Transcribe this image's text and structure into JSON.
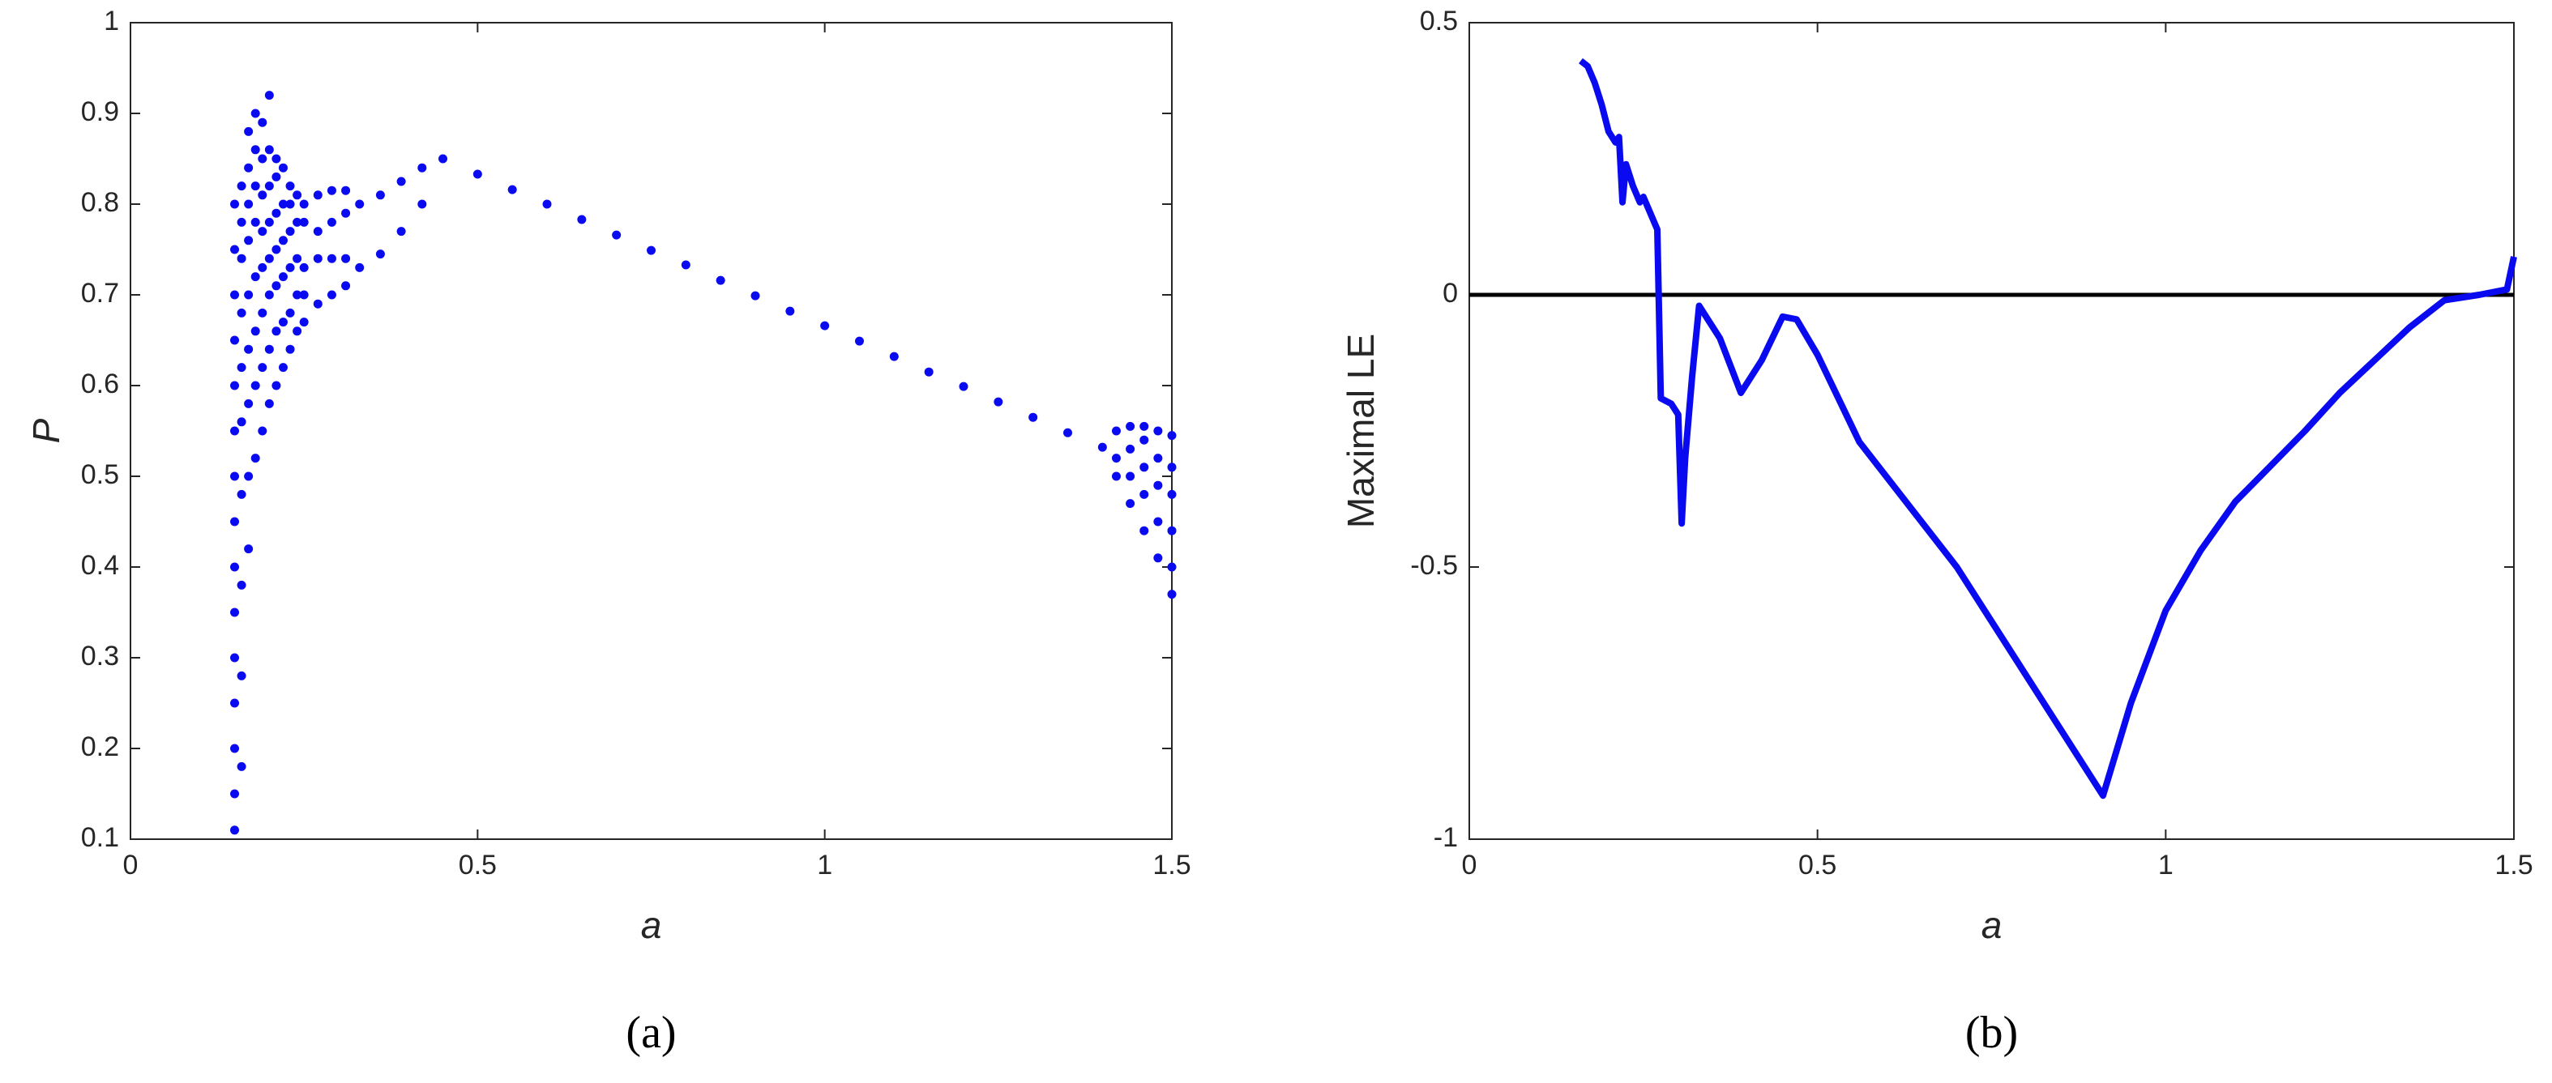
{
  "chart_data": [
    {
      "type": "scatter",
      "caption": "(a)",
      "xlabel": "a",
      "ylabel": "P",
      "xlim": [
        0,
        1.5
      ],
      "xticks": [
        0,
        0.5,
        1,
        1.5
      ],
      "ylim": [
        0.1,
        1
      ],
      "yticks": [
        0.1,
        0.2,
        0.3,
        0.4,
        0.5,
        0.6,
        0.7,
        0.8,
        0.9,
        1
      ],
      "series": [
        {
          "color": "#0a0af0",
          "x": [
            0.15,
            0.15,
            0.15,
            0.15,
            0.15,
            0.15,
            0.15,
            0.15,
            0.15,
            0.15,
            0.15,
            0.15,
            0.15,
            0.15,
            0.15,
            0.16,
            0.16,
            0.16,
            0.16,
            0.16,
            0.16,
            0.16,
            0.16,
            0.16,
            0.16,
            0.17,
            0.17,
            0.17,
            0.17,
            0.17,
            0.17,
            0.17,
            0.17,
            0.17,
            0.18,
            0.18,
            0.18,
            0.18,
            0.18,
            0.18,
            0.18,
            0.18,
            0.19,
            0.19,
            0.19,
            0.19,
            0.19,
            0.19,
            0.19,
            0.19,
            0.2,
            0.2,
            0.2,
            0.2,
            0.2,
            0.2,
            0.2,
            0.2,
            0.21,
            0.21,
            0.21,
            0.21,
            0.21,
            0.21,
            0.21,
            0.22,
            0.22,
            0.22,
            0.22,
            0.22,
            0.22,
            0.23,
            0.23,
            0.23,
            0.23,
            0.23,
            0.23,
            0.24,
            0.24,
            0.24,
            0.24,
            0.24,
            0.25,
            0.25,
            0.25,
            0.25,
            0.25,
            0.27,
            0.27,
            0.27,
            0.27,
            0.29,
            0.29,
            0.29,
            0.29,
            0.31,
            0.31,
            0.31,
            0.31,
            0.33,
            0.33,
            0.36,
            0.36,
            0.39,
            0.39,
            0.42,
            0.42,
            0.45,
            0.5,
            0.55,
            0.6,
            0.65,
            0.7,
            0.75,
            0.8,
            0.85,
            0.9,
            0.95,
            1.0,
            1.05,
            1.1,
            1.15,
            1.2,
            1.25,
            1.3,
            1.35,
            1.4,
            1.42,
            1.42,
            1.42,
            1.44,
            1.44,
            1.44,
            1.44,
            1.46,
            1.46,
            1.46,
            1.46,
            1.46,
            1.48,
            1.48,
            1.48,
            1.48,
            1.48,
            1.5,
            1.5,
            1.5,
            1.5,
            1.5,
            1.5
          ],
          "y": [
            0.11,
            0.15,
            0.2,
            0.25,
            0.3,
            0.35,
            0.4,
            0.45,
            0.5,
            0.55,
            0.6,
            0.65,
            0.7,
            0.75,
            0.8,
            0.18,
            0.28,
            0.38,
            0.48,
            0.56,
            0.62,
            0.68,
            0.74,
            0.78,
            0.82,
            0.42,
            0.5,
            0.58,
            0.64,
            0.7,
            0.76,
            0.8,
            0.84,
            0.88,
            0.52,
            0.6,
            0.66,
            0.72,
            0.78,
            0.82,
            0.86,
            0.9,
            0.55,
            0.62,
            0.68,
            0.73,
            0.77,
            0.81,
            0.85,
            0.89,
            0.58,
            0.64,
            0.7,
            0.74,
            0.78,
            0.82,
            0.86,
            0.92,
            0.6,
            0.66,
            0.71,
            0.75,
            0.79,
            0.83,
            0.85,
            0.62,
            0.67,
            0.72,
            0.76,
            0.8,
            0.84,
            0.64,
            0.68,
            0.73,
            0.77,
            0.8,
            0.82,
            0.66,
            0.7,
            0.74,
            0.78,
            0.81,
            0.67,
            0.7,
            0.73,
            0.78,
            0.8,
            0.69,
            0.74,
            0.77,
            0.81,
            0.7,
            0.74,
            0.78,
            0.815,
            0.71,
            0.74,
            0.79,
            0.815,
            0.73,
            0.8,
            0.745,
            0.81,
            0.77,
            0.825,
            0.8,
            0.84,
            0.85,
            0.833,
            0.816,
            0.8,
            0.783,
            0.766,
            0.749,
            0.733,
            0.716,
            0.699,
            0.682,
            0.666,
            0.649,
            0.632,
            0.615,
            0.599,
            0.582,
            0.565,
            0.548,
            0.532,
            0.5,
            0.52,
            0.55,
            0.47,
            0.5,
            0.53,
            0.555,
            0.44,
            0.48,
            0.51,
            0.54,
            0.555,
            0.41,
            0.45,
            0.49,
            0.52,
            0.55,
            0.37,
            0.4,
            0.44,
            0.48,
            0.51,
            0.545
          ]
        }
      ]
    },
    {
      "type": "line",
      "caption": "(b)",
      "xlabel": "a",
      "ylabel": "Maximal LE",
      "xlim": [
        0,
        1.5
      ],
      "xticks": [
        0,
        0.5,
        1,
        1.5
      ],
      "ylim": [
        -1,
        0.5
      ],
      "yticks": [
        -1,
        -0.5,
        0,
        0.5
      ],
      "hline": 0,
      "series": [
        {
          "color": "#0a0af0",
          "x": [
            0.16,
            0.17,
            0.18,
            0.19,
            0.2,
            0.21,
            0.215,
            0.22,
            0.225,
            0.235,
            0.245,
            0.25,
            0.26,
            0.27,
            0.275,
            0.29,
            0.3,
            0.305,
            0.31,
            0.32,
            0.33,
            0.36,
            0.39,
            0.42,
            0.45,
            0.47,
            0.5,
            0.56,
            0.7,
            0.91,
            0.95,
            1.0,
            1.05,
            1.1,
            1.2,
            1.25,
            1.3,
            1.35,
            1.4,
            1.45,
            1.49,
            1.5
          ],
          "y": [
            0.43,
            0.42,
            0.39,
            0.35,
            0.3,
            0.28,
            0.29,
            0.17,
            0.24,
            0.2,
            0.17,
            0.18,
            0.15,
            0.12,
            -0.19,
            -0.2,
            -0.22,
            -0.42,
            -0.3,
            -0.15,
            -0.02,
            -0.08,
            -0.18,
            -0.12,
            -0.04,
            -0.045,
            -0.11,
            -0.27,
            -0.5,
            -0.92,
            -0.75,
            -0.58,
            -0.47,
            -0.38,
            -0.25,
            -0.18,
            -0.12,
            -0.06,
            -0.01,
            0.0,
            0.01,
            0.07
          ]
        }
      ]
    }
  ]
}
